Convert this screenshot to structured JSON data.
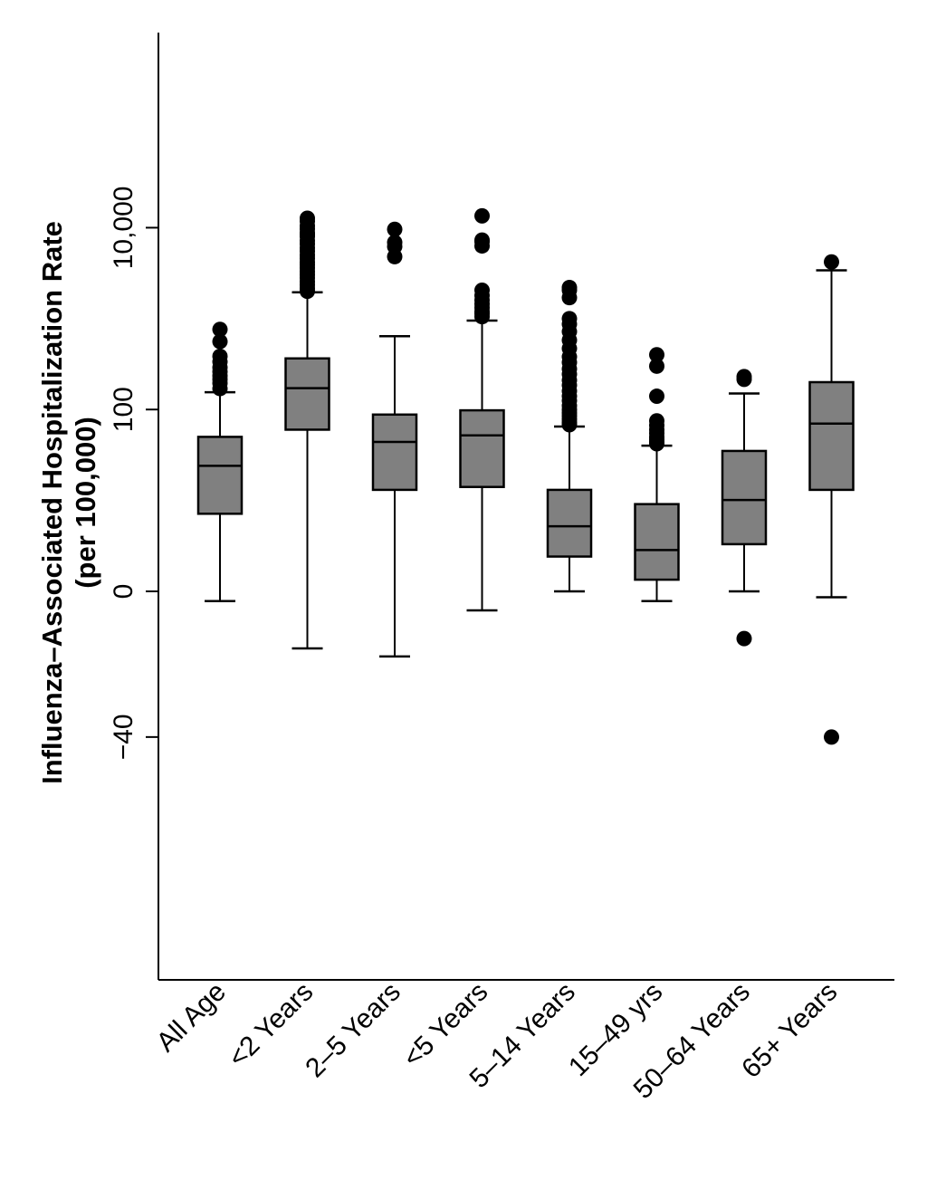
{
  "chart_data": {
    "type": "box",
    "title": "",
    "ylabel": "Influenza–Associated Hospitalization Rate",
    "ylabel_sub": "(per 100,000)",
    "xlabel": "",
    "y_scale": "signed-log (inverse hyperbolic sine)",
    "yticks": [
      {
        "value": -40,
        "label": "−40"
      },
      {
        "value": 0,
        "label": "0"
      },
      {
        "value": 100,
        "label": "100"
      },
      {
        "value": 10000,
        "label": "10,000"
      }
    ],
    "ylim": [
      -60,
      18000
    ],
    "grid": false,
    "legend": "none",
    "colors": {
      "box_fill": "#808080",
      "stroke": "#000000",
      "outlier": "#000000"
    },
    "categories": [
      "All Age",
      "<2 Years",
      "2–5 Years",
      "<5 Years",
      "5–14 Years",
      "15–49 yrs",
      "50–64 Years",
      "65+ Years"
    ],
    "boxes": [
      {
        "label": "All Age",
        "whisker_low": -0.5,
        "q1": 7,
        "median": 24,
        "q3": 50,
        "whisker_high": 155,
        "outliers": [
          170,
          195,
          215,
          235,
          260,
          290,
          335,
          385,
          560,
          760
        ]
      },
      {
        "label": "<2 Years",
        "whisker_low": -4,
        "q1": 60,
        "median": 172,
        "q3": 365,
        "whisker_high": 1950,
        "outliers": [
          2000,
          2150,
          2350,
          2550,
          2800,
          3050,
          3300,
          3600,
          3900,
          4200,
          4600,
          5000,
          5500,
          6000,
          6600,
          7200,
          8000,
          8800,
          9700,
          10500,
          11800,
          12700,
          8400
        ]
      },
      {
        "label": "2–5 Years",
        "whisker_low": -5,
        "q1": 13,
        "median": 44,
        "q3": 88,
        "whisker_high": 640,
        "outliers": [
          4800,
          6200,
          6900,
          9600
        ]
      },
      {
        "label": "<5 Years",
        "whisker_low": -1,
        "q1": 14,
        "median": 52,
        "q3": 98,
        "whisker_high": 950,
        "outliers": [
          1050,
          1130,
          1200,
          1320,
          1450,
          1600,
          1800,
          2050,
          6300,
          7000,
          7300,
          13500
        ]
      },
      {
        "label": "5–14 Years",
        "whisker_low": 0,
        "q1": 2,
        "median": 5,
        "q3": 13,
        "whisker_high": 65,
        "outliers": [
          68,
          72,
          78,
          85,
          92,
          100,
          110,
          125,
          140,
          160,
          185,
          210,
          245,
          280,
          330,
          380,
          470,
          580,
          720,
          870,
          1000,
          1700,
          2050,
          2200
        ]
      },
      {
        "label": "15–49 yrs",
        "whisker_low": -0.5,
        "q1": 0.6,
        "median": 2.5,
        "q3": 9,
        "whisker_high": 40,
        "outliers": [
          42,
          44,
          47,
          50,
          55,
          60,
          67,
          75,
          140,
          300,
          400
        ]
      },
      {
        "label": "50–64 Years",
        "whisker_low": 0,
        "q1": 3,
        "median": 10,
        "q3": 35,
        "whisker_high": 150,
        "outliers": [
          -3,
          215,
          230
        ]
      },
      {
        "label": "65+ Years",
        "whisker_low": -0.3,
        "q1": 13,
        "median": 70,
        "q3": 200,
        "whisker_high": 3400,
        "outliers": [
          4200,
          -40
        ]
      }
    ]
  }
}
